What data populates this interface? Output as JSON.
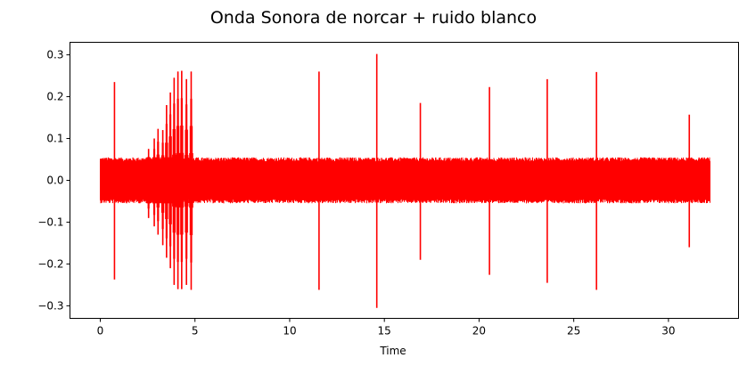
{
  "chart_data": {
    "type": "line",
    "title": "Onda Sonora de norcar + ruido blanco",
    "xlabel": "Time",
    "ylabel": "",
    "xlim": [
      -1.6,
      33.7
    ],
    "ylim": [
      -0.33,
      0.33
    ],
    "x_ticks": [
      0,
      5,
      10,
      15,
      20,
      25,
      30
    ],
    "y_ticks": [
      -0.3,
      -0.2,
      -0.1,
      0.0,
      0.1,
      0.2,
      0.3
    ],
    "x_tick_labels": [
      "0",
      "5",
      "10",
      "15",
      "20",
      "25",
      "30"
    ],
    "y_tick_labels": [
      "−0.3",
      "−0.2",
      "−0.1",
      "0.0",
      "0.1",
      "0.2",
      "0.3"
    ],
    "grid": false,
    "color": "#ff0000",
    "series": [
      {
        "duration": 32.2,
        "noise_amplitude": 0.055,
        "spikes": [
          {
            "t": 0.75,
            "max": 0.235,
            "min": -0.237
          },
          {
            "t": 11.55,
            "max": 0.26,
            "min": -0.262
          },
          {
            "t": 14.6,
            "max": 0.302,
            "min": -0.305
          },
          {
            "t": 16.9,
            "max": 0.185,
            "min": -0.19
          },
          {
            "t": 20.55,
            "max": 0.223,
            "min": -0.226
          },
          {
            "t": 23.6,
            "max": 0.242,
            "min": -0.245
          },
          {
            "t": 26.2,
            "max": 0.259,
            "min": -0.262
          },
          {
            "t": 31.1,
            "max": 0.157,
            "min": -0.16
          }
        ],
        "burst": [
          {
            "t": 2.55,
            "max": 0.075,
            "min": -0.09
          },
          {
            "t": 2.85,
            "max": 0.1,
            "min": -0.11
          },
          {
            "t": 3.05,
            "max": 0.123,
            "min": -0.13
          },
          {
            "t": 3.3,
            "max": 0.12,
            "min": -0.155
          },
          {
            "t": 3.5,
            "max": 0.18,
            "min": -0.185
          },
          {
            "t": 3.7,
            "max": 0.21,
            "min": -0.21
          },
          {
            "t": 3.9,
            "max": 0.245,
            "min": -0.25
          },
          {
            "t": 4.1,
            "max": 0.26,
            "min": -0.26
          },
          {
            "t": 4.3,
            "max": 0.262,
            "min": -0.26
          },
          {
            "t": 4.55,
            "max": 0.242,
            "min": -0.25
          },
          {
            "t": 4.8,
            "max": 0.26,
            "min": -0.262
          }
        ]
      }
    ]
  }
}
